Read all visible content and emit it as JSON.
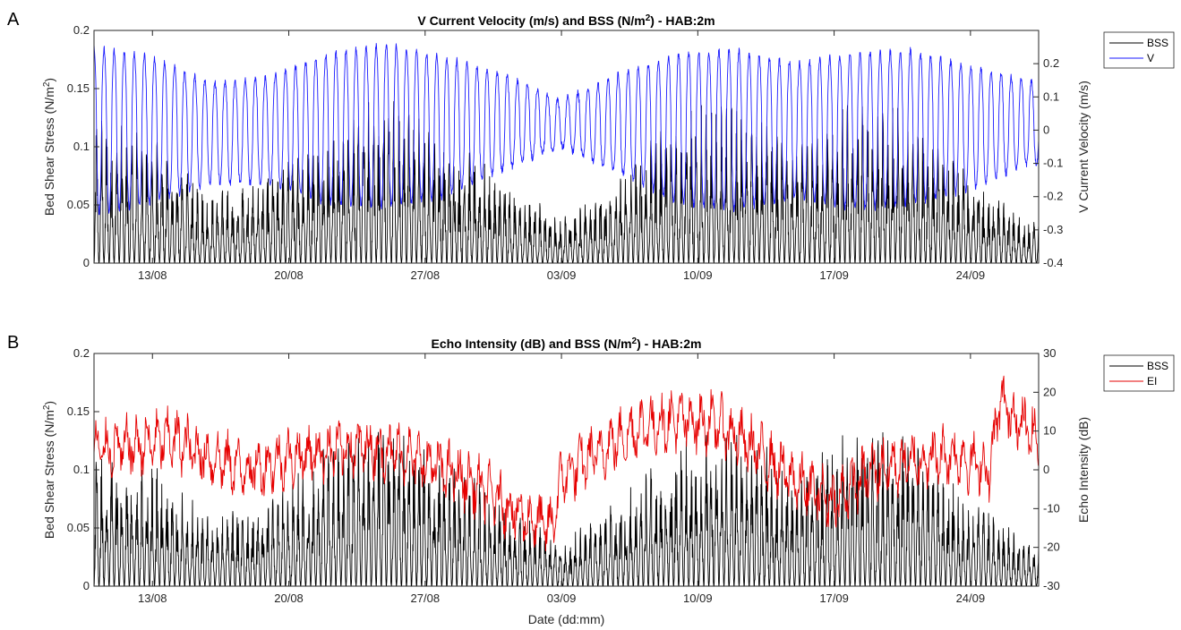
{
  "chart_data": [
    {
      "panel_label": "A",
      "type": "line",
      "title": "V Current Velocity (m/s) and BSS (N/m²) - HAB:2m",
      "xlabel": "",
      "ylabel_left": "Bed Shear Stress (N/m²)",
      "ylabel_right": "V Current Velocity (m/s)",
      "ylim_left": [
        0,
        0.2
      ],
      "ylim_right": [
        -0.4,
        0.3
      ],
      "yticks_left": [
        "0",
        "0.05",
        "0.1",
        "0.15",
        "0.2"
      ],
      "yticks_right": [
        "-0.4",
        "-0.3",
        "-0.2",
        "-0.1",
        "0",
        "0.1",
        "0.2"
      ],
      "x_range": [
        "2017-08-10",
        "2017-09-28"
      ],
      "xtick_labels": [
        "13/08",
        "20/08",
        "27/08",
        "03/09",
        "10/09",
        "17/09",
        "24/09"
      ],
      "xtick_days": [
        3,
        10,
        17,
        24,
        31,
        38,
        45
      ],
      "legend_position": "outside-right",
      "series": [
        {
          "name": "BSS",
          "axis": "left",
          "color": "#000000",
          "sample_days": [
            0,
            3,
            6,
            9,
            12,
            15,
            18,
            21,
            24,
            27,
            30,
            33,
            36,
            39,
            42,
            45,
            48
          ],
          "peak_values": [
            0.12,
            0.1,
            0.055,
            0.07,
            0.11,
            0.14,
            0.1,
            0.07,
            0.035,
            0.07,
            0.12,
            0.13,
            0.09,
            0.13,
            0.12,
            0.07,
            0.035
          ]
        },
        {
          "name": "V",
          "axis": "right",
          "color": "#1a1aff",
          "sample_days": [
            0,
            3,
            6,
            9,
            12,
            15,
            18,
            21,
            24,
            27,
            30,
            33,
            36,
            39,
            42,
            45,
            48
          ],
          "max_values": [
            0.25,
            0.22,
            0.14,
            0.16,
            0.23,
            0.26,
            0.22,
            0.17,
            0.09,
            0.17,
            0.23,
            0.24,
            0.2,
            0.23,
            0.24,
            0.19,
            0.15
          ],
          "min_values": [
            -0.25,
            -0.22,
            -0.16,
            -0.16,
            -0.22,
            -0.23,
            -0.2,
            -0.12,
            -0.05,
            -0.13,
            -0.22,
            -0.24,
            -0.2,
            -0.24,
            -0.22,
            -0.18,
            -0.1
          ]
        }
      ]
    },
    {
      "panel_label": "B",
      "type": "line",
      "title": "Echo Intensity (dB) and BSS (N/m²) - HAB:2m",
      "xlabel": "Date (dd:mm)",
      "ylabel_left": "Bed Shear Stress (N/m²)",
      "ylabel_right": "Echo Intensity (dB)",
      "ylim_left": [
        0,
        0.2
      ],
      "ylim_right": [
        -30,
        30
      ],
      "yticks_left": [
        "0",
        "0.05",
        "0.1",
        "0.15",
        "0.2"
      ],
      "yticks_right": [
        "-30",
        "-20",
        "-10",
        "0",
        "10",
        "20",
        "30"
      ],
      "x_range": [
        "2017-08-10",
        "2017-09-28"
      ],
      "xtick_labels": [
        "13/08",
        "20/08",
        "27/08",
        "03/09",
        "10/09",
        "17/09",
        "24/09"
      ],
      "xtick_days": [
        3,
        10,
        17,
        24,
        31,
        38,
        45
      ],
      "legend_position": "outside-right",
      "series": [
        {
          "name": "BSS",
          "axis": "left",
          "color": "#000000",
          "sample_days": [
            0,
            3,
            6,
            9,
            12,
            15,
            18,
            21,
            24,
            27,
            30,
            33,
            36,
            39,
            42,
            45,
            48
          ],
          "peak_values": [
            0.12,
            0.1,
            0.055,
            0.07,
            0.11,
            0.14,
            0.1,
            0.07,
            0.035,
            0.07,
            0.12,
            0.13,
            0.09,
            0.13,
            0.12,
            0.07,
            0.035
          ]
        },
        {
          "name": "EI",
          "axis": "right",
          "color": "#e60000",
          "sample_days": [
            0,
            2,
            4,
            6,
            8,
            10,
            12,
            14,
            16,
            18,
            20,
            22,
            23.5,
            24,
            26,
            28,
            30,
            32,
            34,
            36,
            38,
            40,
            42,
            44,
            46,
            46.5,
            47,
            49
          ],
          "mean_values": [
            5,
            6,
            8,
            3,
            0,
            3,
            5,
            6,
            4,
            0,
            -5,
            -12,
            -15,
            -2,
            5,
            11,
            13,
            12,
            5,
            -3,
            -8,
            0,
            2,
            4,
            0,
            18,
            15,
            5
          ]
        }
      ]
    }
  ]
}
